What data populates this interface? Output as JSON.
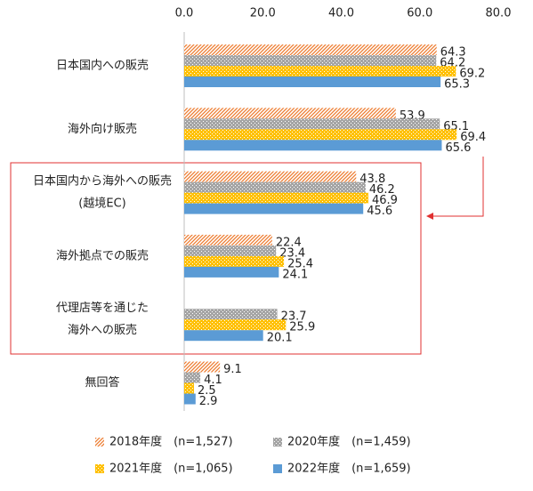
{
  "chart_data": {
    "type": "hbar",
    "categories": [
      [
        "日本国内への販売"
      ],
      [
        "海外向け販売"
      ],
      [
        "日本国内から海外への販売",
        "(越境EC)"
      ],
      [
        "海外拠点での販売"
      ],
      [
        "代理店等を通じた",
        "海外への販売"
      ],
      [
        "無回答"
      ]
    ],
    "series": [
      {
        "name": "2018年度　(n=1,527)",
        "color": "#ed7d31",
        "pattern": "hatch",
        "values": [
          64.3,
          53.9,
          43.8,
          22.4,
          null,
          9.1
        ]
      },
      {
        "name": "2020年度　(n=1,459)",
        "color": "#a5a5a5",
        "pattern": "dots",
        "values": [
          64.2,
          65.1,
          46.2,
          23.4,
          23.7,
          4.1
        ]
      },
      {
        "name": "2021年度　(n=1,065)",
        "color": "#ffc000",
        "pattern": "dots",
        "values": [
          69.2,
          69.4,
          46.9,
          25.4,
          25.9,
          2.5
        ]
      },
      {
        "name": "2022年度　(n=1,659)",
        "color": "#5b9bd5",
        "pattern": "solid",
        "values": [
          65.3,
          65.6,
          45.6,
          24.1,
          20.1,
          2.9
        ]
      }
    ],
    "xlim": [
      0,
      80
    ],
    "xticks": [
      {
        "value": 0,
        "label": "0.0"
      },
      {
        "value": 20,
        "label": "20.0"
      },
      {
        "value": 40,
        "label": "40.0"
      },
      {
        "value": 60,
        "label": "60.0"
      },
      {
        "value": 80,
        "label": "80.0"
      }
    ],
    "grid": false
  }
}
